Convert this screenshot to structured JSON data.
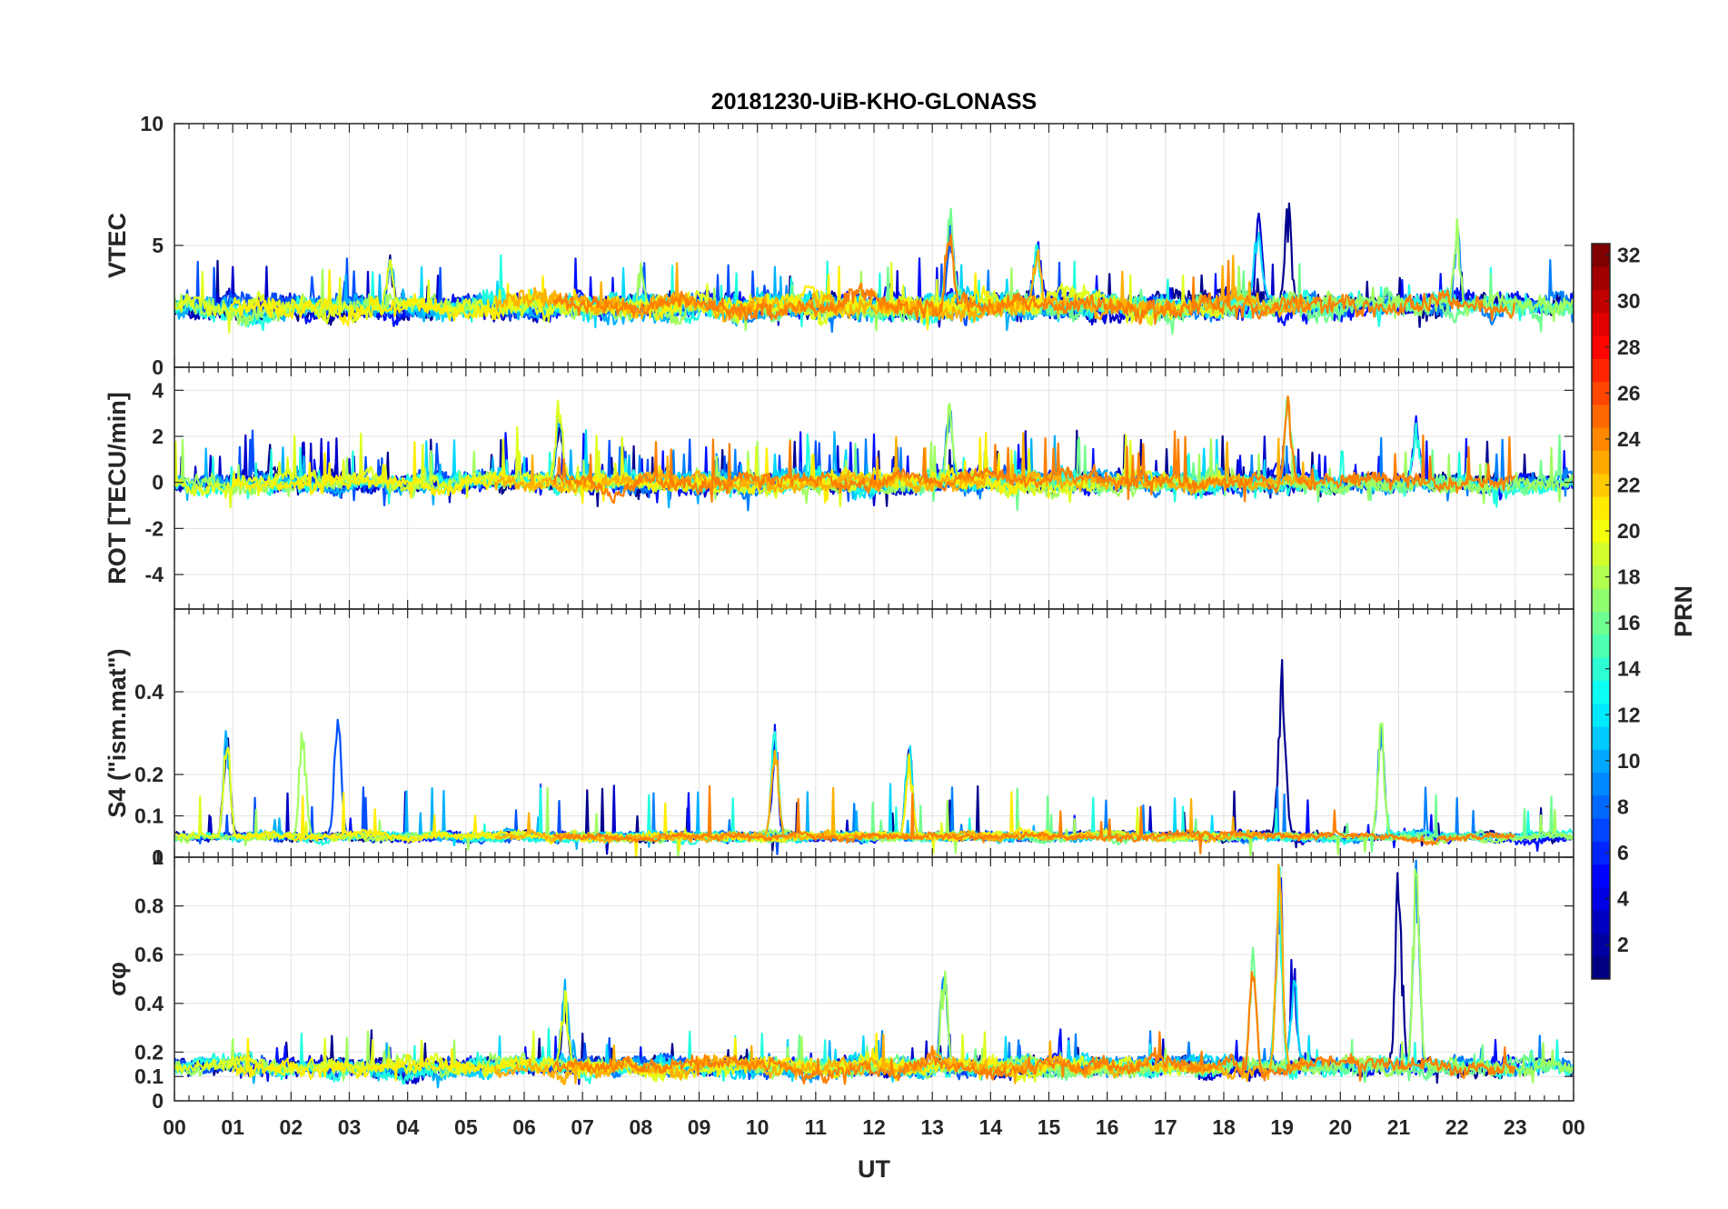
{
  "chart_data": {
    "type": "line",
    "title": "20181230-UiB-KHO-GLONASS",
    "xlabel": "UT",
    "x_tick_labels": [
      "00",
      "01",
      "02",
      "03",
      "04",
      "05",
      "06",
      "07",
      "08",
      "09",
      "10",
      "11",
      "12",
      "13",
      "14",
      "15",
      "16",
      "17",
      "18",
      "19",
      "20",
      "21",
      "22",
      "23",
      "00"
    ],
    "x_range_hours": [
      0,
      24
    ],
    "grid": true,
    "panels": [
      {
        "ylabel": "VTEC",
        "ylim": [
          0,
          10
        ],
        "yticks": [
          0,
          5,
          10
        ],
        "baseline": 2.5,
        "noise": 0.55,
        "spikes": 0.02,
        "spike_size": 2.8,
        "events": [
          {
            "hour": 3.7,
            "amp": 2.5
          },
          {
            "hour": 8.0,
            "amp": 2.0
          },
          {
            "hour": 13.3,
            "amp": 4.0
          },
          {
            "hour": 14.8,
            "amp": 2.8
          },
          {
            "hour": 18.6,
            "amp": 4.0
          },
          {
            "hour": 19.1,
            "amp": 4.5
          },
          {
            "hour": 22.0,
            "amp": 3.5
          }
        ]
      },
      {
        "ylabel": "ROT [TECU/min]",
        "ylim": [
          -5.5,
          5
        ],
        "yticks": [
          -4,
          -2,
          0,
          2,
          4
        ],
        "baseline": 0.0,
        "noise": 0.45,
        "spikes": 0.05,
        "spike_size": 2.8,
        "events": [
          {
            "hour": 6.6,
            "amp": 3.5
          },
          {
            "hour": 13.3,
            "amp": 3.5
          },
          {
            "hour": 19.1,
            "amp": 4.0
          },
          {
            "hour": 21.3,
            "amp": 3.0
          }
        ]
      },
      {
        "ylabel": "S4 (\"ism.mat\")",
        "ylim": [
          0,
          0.6
        ],
        "yticks": [
          0,
          0.1,
          0.2,
          0.4
        ],
        "baseline": 0.05,
        "noise": 0.012,
        "spikes": 0.015,
        "spike_size": 0.18,
        "events": [
          {
            "hour": 0.9,
            "amp": 0.28
          },
          {
            "hour": 2.2,
            "amp": 0.3
          },
          {
            "hour": 2.8,
            "amp": 0.33
          },
          {
            "hour": 10.3,
            "amp": 0.28
          },
          {
            "hour": 12.6,
            "amp": 0.24
          },
          {
            "hour": 19.0,
            "amp": 0.48
          },
          {
            "hour": 20.7,
            "amp": 0.3
          }
        ]
      },
      {
        "ylabel": "σφ",
        "ylim": [
          0,
          1
        ],
        "yticks": [
          0,
          0.1,
          0.2,
          0.4,
          0.6,
          0.8,
          1
        ],
        "baseline": 0.14,
        "noise": 0.04,
        "spikes": 0.02,
        "spike_size": 0.2,
        "events": [
          {
            "hour": 6.7,
            "amp": 0.35
          },
          {
            "hour": 13.2,
            "amp": 0.48
          },
          {
            "hour": 18.5,
            "amp": 0.55
          },
          {
            "hour": 18.95,
            "amp": 0.85
          },
          {
            "hour": 19.2,
            "amp": 0.42
          },
          {
            "hour": 21.0,
            "amp": 0.9
          },
          {
            "hour": 21.3,
            "amp": 0.9
          }
        ]
      }
    ],
    "colorbar": {
      "label": "PRN",
      "range": [
        1,
        32
      ],
      "tick_labels": [
        "2",
        "4",
        "6",
        "8",
        "10",
        "12",
        "14",
        "16",
        "18",
        "20",
        "22",
        "24",
        "26",
        "28",
        "30",
        "32"
      ],
      "colormap": "jet"
    },
    "series": [
      {
        "prn": 1,
        "color": "#00008f",
        "start": 0.0,
        "end": 24.0
      },
      {
        "prn": 2,
        "color": "#0000c9",
        "start": 0.0,
        "end": 19.5
      },
      {
        "prn": 3,
        "color": "#0010ff",
        "start": 1.5,
        "end": 24.0
      },
      {
        "prn": 7,
        "color": "#0050ff",
        "start": 0.0,
        "end": 15.5
      },
      {
        "prn": 9,
        "color": "#0080ff",
        "start": 7.5,
        "end": 24.0
      },
      {
        "prn": 11,
        "color": "#00b0ff",
        "start": 0.0,
        "end": 16.0
      },
      {
        "prn": 12,
        "color": "#00d8ff",
        "start": 4.0,
        "end": 20.0
      },
      {
        "prn": 13,
        "color": "#20ffe0",
        "start": 0.0,
        "end": 24.0
      },
      {
        "prn": 15,
        "color": "#70ff90",
        "start": 10.0,
        "end": 24.0
      },
      {
        "prn": 17,
        "color": "#a0ff60",
        "start": 0.0,
        "end": 24.0
      },
      {
        "prn": 19,
        "color": "#e0ff20",
        "start": 0.0,
        "end": 18.0
      },
      {
        "prn": 20,
        "color": "#ffee00",
        "start": 1.0,
        "end": 15.0
      },
      {
        "prn": 22,
        "color": "#ffb000",
        "start": 5.5,
        "end": 19.5
      },
      {
        "prn": 24,
        "color": "#ff8000",
        "start": 6.5,
        "end": 23.0
      }
    ]
  }
}
